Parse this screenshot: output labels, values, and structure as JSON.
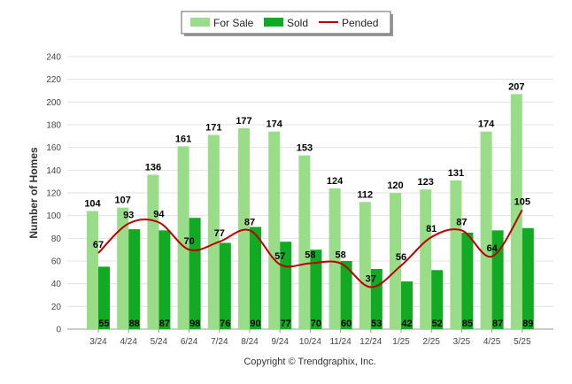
{
  "chart_data": {
    "type": "bar",
    "ylabel": "Number of Homes",
    "xlabel": "",
    "ylim": [
      0,
      240
    ],
    "yticks": [
      0,
      20,
      40,
      60,
      80,
      100,
      120,
      140,
      160,
      180,
      200,
      220,
      240
    ],
    "categories": [
      "3/24",
      "4/24",
      "5/24",
      "6/24",
      "7/24",
      "8/24",
      "9/24",
      "10/24",
      "11/24",
      "12/24",
      "1/25",
      "2/25",
      "3/25",
      "4/25",
      "5/25"
    ],
    "series": [
      {
        "name": "For Sale",
        "type": "bar",
        "color": "#99dd88",
        "values": [
          104,
          107,
          136,
          161,
          171,
          177,
          174,
          153,
          124,
          112,
          120,
          123,
          131,
          174,
          207
        ]
      },
      {
        "name": "Sold",
        "type": "bar",
        "color": "#11aa22",
        "values": [
          55,
          88,
          87,
          98,
          76,
          90,
          77,
          70,
          60,
          53,
          42,
          52,
          85,
          87,
          89
        ]
      },
      {
        "name": "Pended",
        "type": "line",
        "color": "#bb0000",
        "values": [
          67,
          93,
          94,
          70,
          77,
          87,
          57,
          58,
          58,
          37,
          56,
          81,
          87,
          64,
          105
        ]
      }
    ],
    "grid": true,
    "legend_position": "top-center",
    "credit": "Copyright © Trendgraphix, Inc."
  }
}
